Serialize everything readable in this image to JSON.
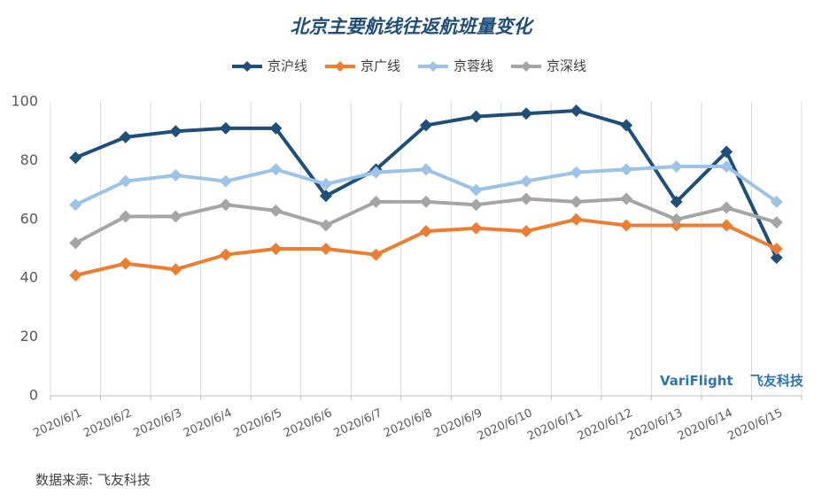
{
  "chart_data": {
    "type": "line",
    "title": "北京主要航线往返航班量变化",
    "categories": [
      "2020/6/1",
      "2020/6/2",
      "2020/6/3",
      "2020/6/4",
      "2020/6/5",
      "2020/6/6",
      "2020/6/7",
      "2020/6/8",
      "2020/6/9",
      "2020/6/10",
      "2020/6/11",
      "2020/6/12",
      "2020/6/13",
      "2020/6/14",
      "2020/6/15"
    ],
    "series": [
      {
        "name": "京沪线",
        "color": "#1f4e79",
        "marker": "diamond",
        "values": [
          81,
          88,
          90,
          91,
          91,
          68,
          77,
          92,
          95,
          96,
          97,
          92,
          66,
          83,
          47
        ]
      },
      {
        "name": "京广线",
        "color": "#ed7d31",
        "marker": "diamond",
        "values": [
          41,
          45,
          43,
          48,
          50,
          50,
          48,
          56,
          57,
          56,
          60,
          58,
          58,
          58,
          50
        ]
      },
      {
        "name": "京蓉线",
        "color": "#9dc3e6",
        "marker": "diamond",
        "values": [
          65,
          73,
          75,
          73,
          77,
          72,
          76,
          77,
          70,
          73,
          76,
          77,
          78,
          78,
          66
        ]
      },
      {
        "name": "京深线",
        "color": "#a5a5a5",
        "marker": "diamond",
        "values": [
          52,
          61,
          61,
          65,
          63,
          58,
          66,
          66,
          65,
          67,
          66,
          67,
          60,
          64,
          59
        ]
      }
    ],
    "ylim": [
      0,
      100
    ],
    "yticks": [
      0,
      20,
      40,
      60,
      80,
      100
    ],
    "grid": "vertical",
    "legend": "top-center",
    "xlabel": "",
    "ylabel": ""
  },
  "watermark": {
    "brand": "VariFlight",
    "cn": "飞友科技"
  },
  "source_note": "数据来源: 飞友科技"
}
